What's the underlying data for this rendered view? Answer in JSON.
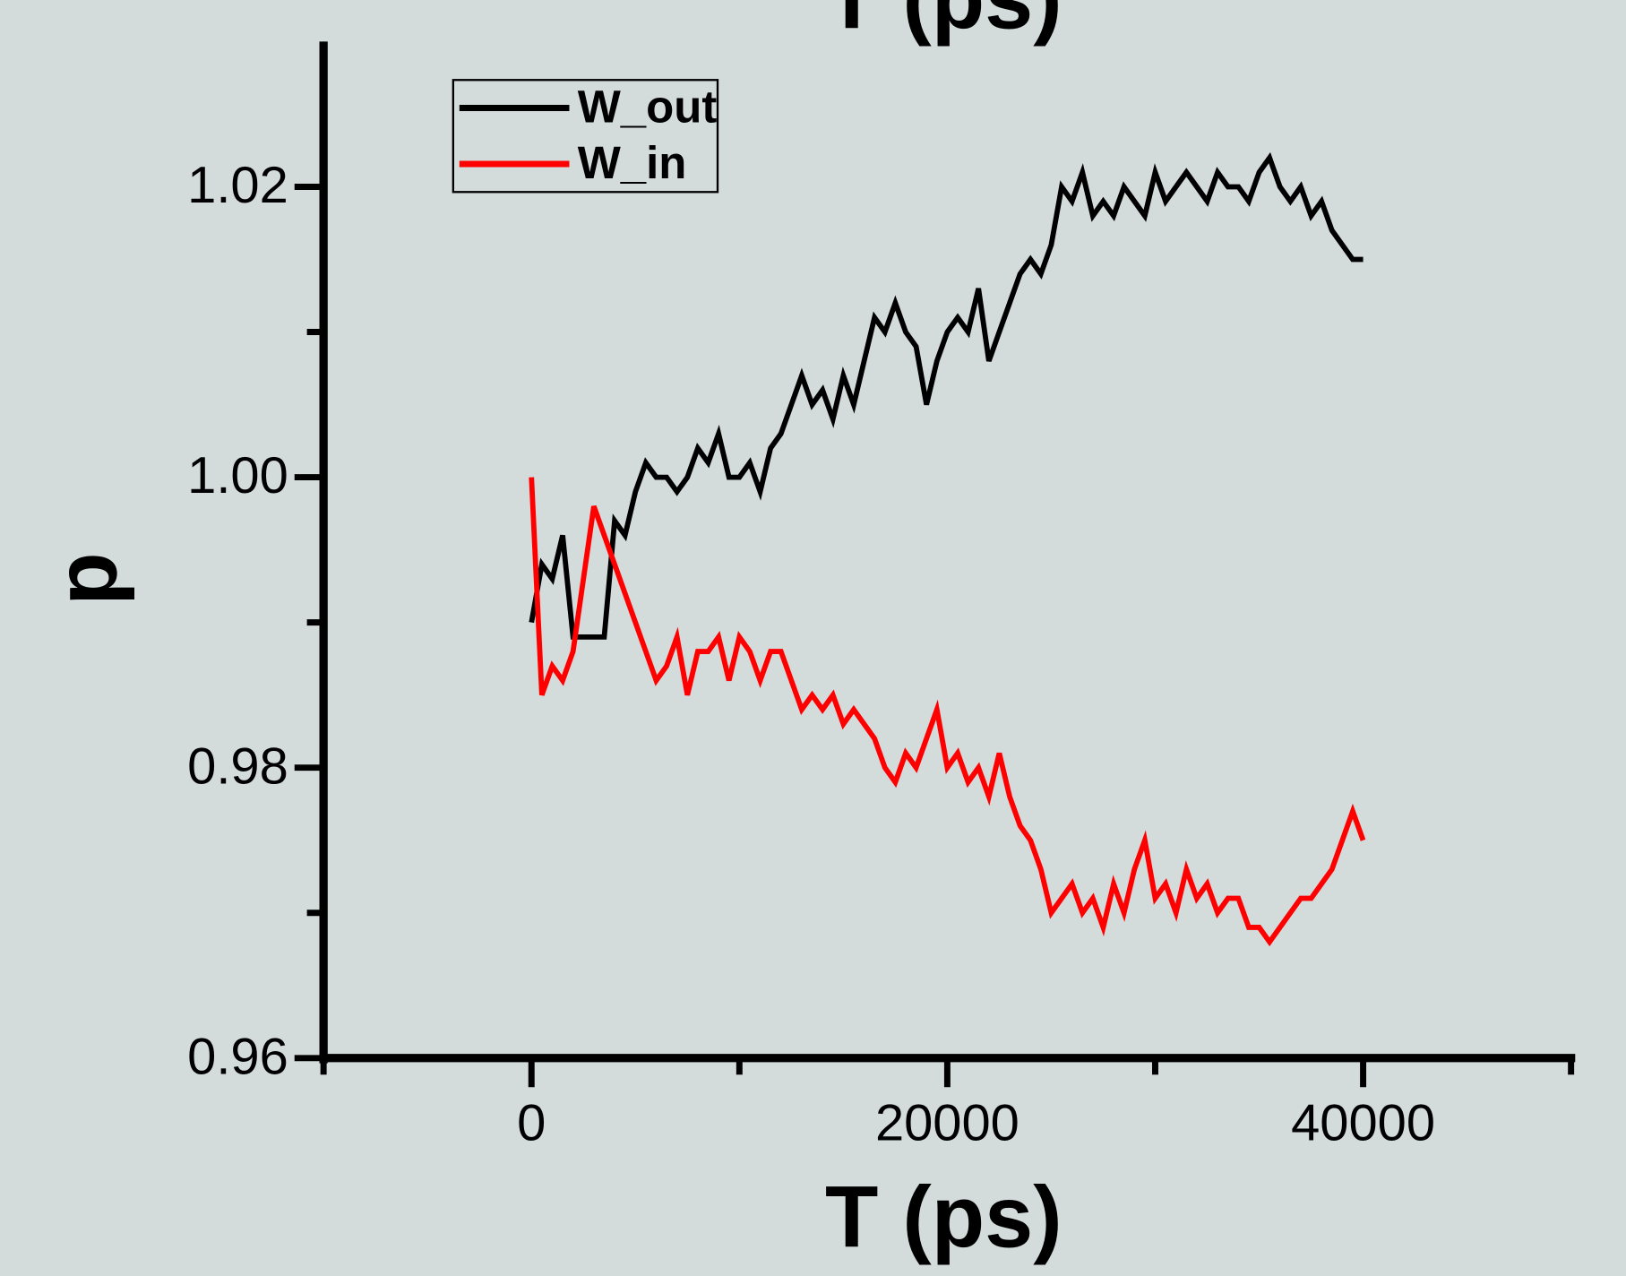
{
  "chart_data": {
    "type": "line",
    "title": "T (ps)",
    "x_label": "T (ps)",
    "y_label": "p",
    "x": [
      0,
      500,
      1000,
      1500,
      2000,
      2500,
      3000,
      3500,
      4000,
      4500,
      5000,
      5500,
      6000,
      6500,
      7000,
      7500,
      8000,
      8500,
      9000,
      9500,
      10000,
      10500,
      11000,
      11500,
      12000,
      12500,
      13000,
      13500,
      14000,
      14500,
      15000,
      15500,
      16000,
      16500,
      17000,
      17500,
      18000,
      18500,
      19000,
      19500,
      20000,
      20500,
      21000,
      21500,
      22000,
      22500,
      23000,
      23500,
      24000,
      24500,
      25000,
      25500,
      26000,
      26500,
      27000,
      27500,
      28000,
      28500,
      29000,
      29500,
      30000,
      30500,
      31000,
      31500,
      32000,
      32500,
      33000,
      33500,
      34000,
      34500,
      35000,
      35500,
      36000,
      36500,
      37000,
      37500,
      38000,
      38500,
      39000,
      39500,
      40000
    ],
    "series": [
      {
        "name": "W_out",
        "color": "#000000",
        "values": [
          0.99,
          0.994,
          0.993,
          0.996,
          0.989,
          0.989,
          0.989,
          0.989,
          0.997,
          0.996,
          0.999,
          1.001,
          1.0,
          1.0,
          0.999,
          1.0,
          1.002,
          1.001,
          1.003,
          1.0,
          1.0,
          1.001,
          0.999,
          1.002,
          1.003,
          1.005,
          1.007,
          1.005,
          1.006,
          1.004,
          1.007,
          1.005,
          1.008,
          1.011,
          1.01,
          1.012,
          1.01,
          1.009,
          1.005,
          1.008,
          1.01,
          1.011,
          1.01,
          1.013,
          1.008,
          1.01,
          1.012,
          1.014,
          1.015,
          1.014,
          1.016,
          1.02,
          1.019,
          1.021,
          1.018,
          1.019,
          1.018,
          1.02,
          1.019,
          1.018,
          1.021,
          1.019,
          1.02,
          1.021,
          1.02,
          1.019,
          1.021,
          1.02,
          1.02,
          1.019,
          1.021,
          1.022,
          1.02,
          1.019,
          1.02,
          1.018,
          1.019,
          1.017,
          1.016,
          1.015,
          1.015
        ]
      },
      {
        "name": "W_in",
        "color": "#ff0000",
        "values": [
          1.0,
          0.985,
          0.987,
          0.986,
          0.988,
          0.993,
          0.998,
          0.996,
          0.994,
          0.992,
          0.99,
          0.988,
          0.986,
          0.987,
          0.989,
          0.985,
          0.988,
          0.988,
          0.989,
          0.986,
          0.989,
          0.988,
          0.986,
          0.988,
          0.988,
          0.986,
          0.984,
          0.985,
          0.984,
          0.985,
          0.983,
          0.984,
          0.983,
          0.982,
          0.98,
          0.979,
          0.981,
          0.98,
          0.982,
          0.984,
          0.98,
          0.981,
          0.979,
          0.98,
          0.978,
          0.981,
          0.978,
          0.976,
          0.975,
          0.973,
          0.97,
          0.971,
          0.972,
          0.97,
          0.971,
          0.969,
          0.972,
          0.97,
          0.973,
          0.975,
          0.971,
          0.972,
          0.97,
          0.973,
          0.971,
          0.972,
          0.97,
          0.971,
          0.971,
          0.969,
          0.969,
          0.968,
          0.969,
          0.97,
          0.971,
          0.971,
          0.972,
          0.973,
          0.975,
          0.977,
          0.975
        ]
      }
    ],
    "xlim": [
      -10000,
      50000
    ],
    "xticks": [
      0,
      20000,
      40000
    ],
    "xminor": [
      -10000,
      10000,
      30000,
      50000
    ],
    "ylim": [
      0.96,
      1.03
    ],
    "yticks": [
      0.96,
      0.98,
      {
        "value": 1,
        "label": "1.00"
      },
      1.02
    ],
    "yminor": [
      0.97,
      0.99,
      1.01
    ],
    "legend": "upper left"
  }
}
